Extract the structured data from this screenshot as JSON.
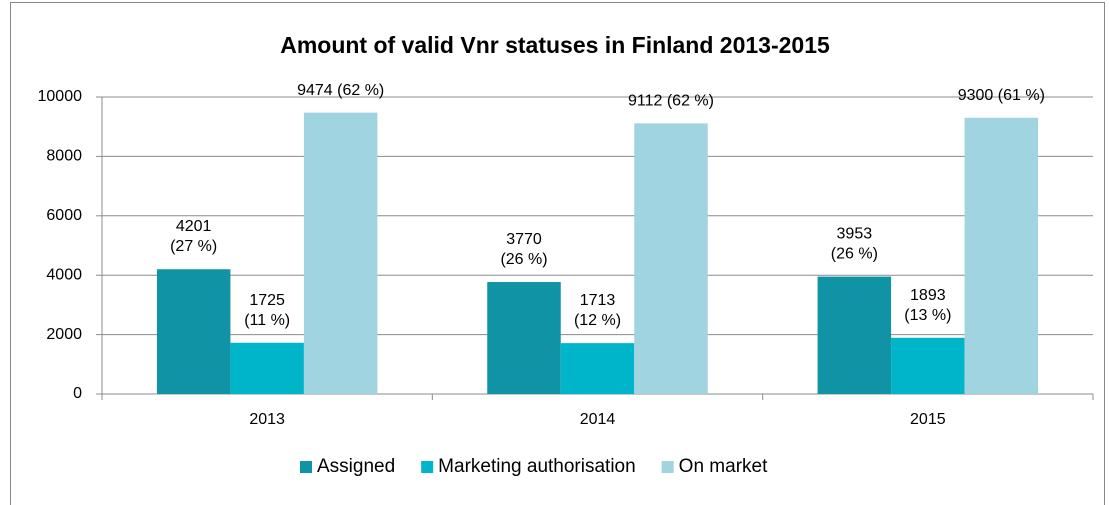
{
  "chart_data": {
    "type": "bar",
    "title": "Amount of valid Vnr statuses in Finland 2013-2015",
    "categories": [
      "2013",
      "2014",
      "2015"
    ],
    "series": [
      {
        "name": "Assigned",
        "color": "#1193a6",
        "values": [
          4201,
          3770,
          3953
        ],
        "value_labels": [
          "4201 (27 %)",
          "3770 (26 %)",
          "3953 (26 %)"
        ]
      },
      {
        "name": "Marketing authorisation",
        "color": "#00b5c9",
        "values": [
          1725,
          1713,
          1893
        ],
        "value_labels": [
          "1725 (11 %)",
          "1713 (12 %)",
          "1893 (13 %)"
        ]
      },
      {
        "name": "On market",
        "color": "#a0d4e1",
        "values": [
          9474,
          9112,
          9300
        ],
        "value_labels": [
          "9474 (62 %)",
          "9112 (62 %)",
          "9300 (61 %)"
        ]
      }
    ],
    "ylim": [
      0,
      10000
    ],
    "yticks": [
      0,
      2000,
      4000,
      6000,
      8000,
      10000
    ],
    "grid": true,
    "legend": "bottom"
  }
}
